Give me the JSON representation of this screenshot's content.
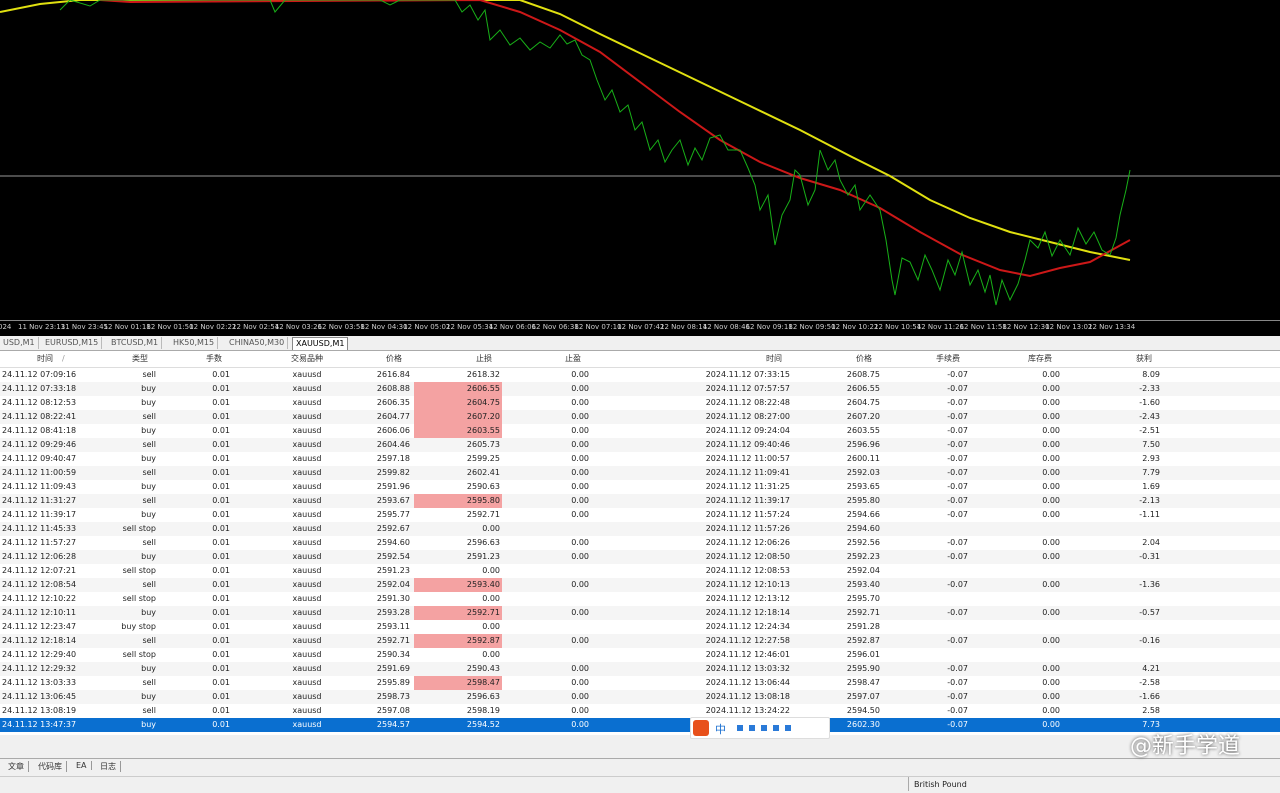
{
  "chart": {
    "xaxis_labels": [
      "024",
      "11 Nov 23:13",
      "11 Nov 23:45",
      "12 Nov 01:18",
      "12 Nov 01:50",
      "12 Nov 02:22",
      "12 Nov 02:54",
      "12 Nov 03:26",
      "12 Nov 03:58",
      "12 Nov 04:30",
      "12 Nov 05:02",
      "12 Nov 05:34",
      "12 Nov 06:06",
      "12 Nov 06:38",
      "12 Nov 07:10",
      "12 Nov 07:42",
      "12 Nov 08:14",
      "12 Nov 08:46",
      "12 Nov 09:18",
      "12 Nov 09:50",
      "12 Nov 10:22",
      "12 Nov 10:54",
      "12 Nov 11:26",
      "12 Nov 11:58",
      "12 Nov 12:30",
      "12 Nov 13:02",
      "12 Nov 13:34"
    ]
  },
  "chart_tabs": [
    "USD,M1",
    "EURUSD,M15",
    "BTCUSD,M1",
    "HK50,M15",
    "CHINA50,M30",
    "XAUUSD,M1"
  ],
  "active_tab": 5,
  "table": {
    "headers": [
      "时间",
      "类型",
      "手数",
      "交易品种",
      "价格",
      "止损",
      "止盈",
      "时间",
      "价格",
      "手续费",
      "库存费",
      "获利"
    ],
    "sort_marker": "/",
    "rows": [
      {
        "cells": [
          "24.11.12 07:09:16",
          "sell",
          "0.01",
          "xauusd",
          "2616.84",
          "2618.32",
          "0.00",
          "2024.11.12 07:33:15",
          "2608.75",
          "-0.07",
          "0.00",
          "8.09"
        ]
      },
      {
        "cells": [
          "24.11.12 07:33:18",
          "buy",
          "0.01",
          "xauusd",
          "2608.88",
          "2606.55",
          "0.00",
          "2024.11.12 07:57:57",
          "2606.55",
          "-0.07",
          "0.00",
          "-2.33"
        ],
        "sl_highlight": true
      },
      {
        "cells": [
          "24.11.12 08:12:53",
          "buy",
          "0.01",
          "xauusd",
          "2606.35",
          "2604.75",
          "0.00",
          "2024.11.12 08:22:48",
          "2604.75",
          "-0.07",
          "0.00",
          "-1.60"
        ],
        "sl_highlight": true
      },
      {
        "cells": [
          "24.11.12 08:22:41",
          "sell",
          "0.01",
          "xauusd",
          "2604.77",
          "2607.20",
          "0.00",
          "2024.11.12 08:27:00",
          "2607.20",
          "-0.07",
          "0.00",
          "-2.43"
        ],
        "sl_highlight": true
      },
      {
        "cells": [
          "24.11.12 08:41:18",
          "buy",
          "0.01",
          "xauusd",
          "2606.06",
          "2603.55",
          "0.00",
          "2024.11.12 09:24:04",
          "2603.55",
          "-0.07",
          "0.00",
          "-2.51"
        ],
        "sl_highlight": true
      },
      {
        "cells": [
          "24.11.12 09:29:46",
          "sell",
          "0.01",
          "xauusd",
          "2604.46",
          "2605.73",
          "0.00",
          "2024.11.12 09:40:46",
          "2596.96",
          "-0.07",
          "0.00",
          "7.50"
        ]
      },
      {
        "cells": [
          "24.11.12 09:40:47",
          "buy",
          "0.01",
          "xauusd",
          "2597.18",
          "2599.25",
          "0.00",
          "2024.11.12 11:00:57",
          "2600.11",
          "-0.07",
          "0.00",
          "2.93"
        ]
      },
      {
        "cells": [
          "24.11.12 11:00:59",
          "sell",
          "0.01",
          "xauusd",
          "2599.82",
          "2602.41",
          "0.00",
          "2024.11.12 11:09:41",
          "2592.03",
          "-0.07",
          "0.00",
          "7.79"
        ]
      },
      {
        "cells": [
          "24.11.12 11:09:43",
          "buy",
          "0.01",
          "xauusd",
          "2591.96",
          "2590.63",
          "0.00",
          "2024.11.12 11:31:25",
          "2593.65",
          "-0.07",
          "0.00",
          "1.69"
        ]
      },
      {
        "cells": [
          "24.11.12 11:31:27",
          "sell",
          "0.01",
          "xauusd",
          "2593.67",
          "2595.80",
          "0.00",
          "2024.11.12 11:39:17",
          "2595.80",
          "-0.07",
          "0.00",
          "-2.13"
        ],
        "sl_highlight": true
      },
      {
        "cells": [
          "24.11.12 11:39:17",
          "buy",
          "0.01",
          "xauusd",
          "2595.77",
          "2592.71",
          "0.00",
          "2024.11.12 11:57:24",
          "2594.66",
          "-0.07",
          "0.00",
          "-1.11"
        ]
      },
      {
        "cells": [
          "24.11.12 11:45:33",
          "sell stop",
          "0.01",
          "xauusd",
          "2592.67",
          "0.00",
          null,
          "2024.11.12 11:57:26",
          "2594.60",
          null,
          null,
          null
        ]
      },
      {
        "cells": [
          "24.11.12 11:57:27",
          "sell",
          "0.01",
          "xauusd",
          "2594.60",
          "2596.63",
          "0.00",
          "2024.11.12 12:06:26",
          "2592.56",
          "-0.07",
          "0.00",
          "2.04"
        ]
      },
      {
        "cells": [
          "24.11.12 12:06:28",
          "buy",
          "0.01",
          "xauusd",
          "2592.54",
          "2591.23",
          "0.00",
          "2024.11.12 12:08:50",
          "2592.23",
          "-0.07",
          "0.00",
          "-0.31"
        ]
      },
      {
        "cells": [
          "24.11.12 12:07:21",
          "sell stop",
          "0.01",
          "xauusd",
          "2591.23",
          "0.00",
          null,
          "2024.11.12 12:08:53",
          "2592.04",
          null,
          null,
          null
        ]
      },
      {
        "cells": [
          "24.11.12 12:08:54",
          "sell",
          "0.01",
          "xauusd",
          "2592.04",
          "2593.40",
          "0.00",
          "2024.11.12 12:10:13",
          "2593.40",
          "-0.07",
          "0.00",
          "-1.36"
        ],
        "sl_highlight": true
      },
      {
        "cells": [
          "24.11.12 12:10:22",
          "sell stop",
          "0.01",
          "xauusd",
          "2591.30",
          "0.00",
          null,
          "2024.11.12 12:13:12",
          "2595.70",
          null,
          null,
          null
        ]
      },
      {
        "cells": [
          "24.11.12 12:10:11",
          "buy",
          "0.01",
          "xauusd",
          "2593.28",
          "2592.71",
          "0.00",
          "2024.11.12 12:18:14",
          "2592.71",
          "-0.07",
          "0.00",
          "-0.57"
        ],
        "sl_highlight": true
      },
      {
        "cells": [
          "24.11.12 12:23:47",
          "buy stop",
          "0.01",
          "xauusd",
          "2593.11",
          "0.00",
          null,
          "2024.11.12 12:24:34",
          "2591.28",
          null,
          null,
          null
        ]
      },
      {
        "cells": [
          "24.11.12 12:18:14",
          "sell",
          "0.01",
          "xauusd",
          "2592.71",
          "2592.87",
          "0.00",
          "2024.11.12 12:27:58",
          "2592.87",
          "-0.07",
          "0.00",
          "-0.16"
        ],
        "sl_highlight": true
      },
      {
        "cells": [
          "24.11.12 12:29:40",
          "sell stop",
          "0.01",
          "xauusd",
          "2590.34",
          "0.00",
          null,
          "2024.11.12 12:46:01",
          "2596.01",
          null,
          null,
          null
        ]
      },
      {
        "cells": [
          "24.11.12 12:29:32",
          "buy",
          "0.01",
          "xauusd",
          "2591.69",
          "2590.43",
          "0.00",
          "2024.11.12 13:03:32",
          "2595.90",
          "-0.07",
          "0.00",
          "4.21"
        ]
      },
      {
        "cells": [
          "24.11.12 13:03:33",
          "sell",
          "0.01",
          "xauusd",
          "2595.89",
          "2598.47",
          "0.00",
          "2024.11.12 13:06:44",
          "2598.47",
          "-0.07",
          "0.00",
          "-2.58"
        ],
        "sl_highlight": true
      },
      {
        "cells": [
          "24.11.12 13:06:45",
          "buy",
          "0.01",
          "xauusd",
          "2598.73",
          "2596.63",
          "0.00",
          "2024.11.12 13:08:18",
          "2597.07",
          "-0.07",
          "0.00",
          "-1.66"
        ]
      },
      {
        "cells": [
          "24.11.12 13:08:19",
          "sell",
          "0.01",
          "xauusd",
          "2597.08",
          "2598.19",
          "0.00",
          "2024.11.12 13:24:22",
          "2594.50",
          "-0.07",
          "0.00",
          "2.58"
        ]
      },
      {
        "cells": [
          "24.11.12 13:47:37",
          "buy",
          "0.01",
          "xauusd",
          "2594.57",
          "2594.52",
          "0.00",
          null,
          "2602.30",
          "-0.07",
          "0.00",
          "7.73"
        ],
        "selected": true
      }
    ]
  },
  "ime_toolbar": {
    "label": "中"
  },
  "bottom_tabs": [
    "文章",
    "代码库",
    "EA",
    "日志"
  ],
  "status_bar": {
    "currency": "British Pound"
  },
  "watermark": "@新手学道"
}
